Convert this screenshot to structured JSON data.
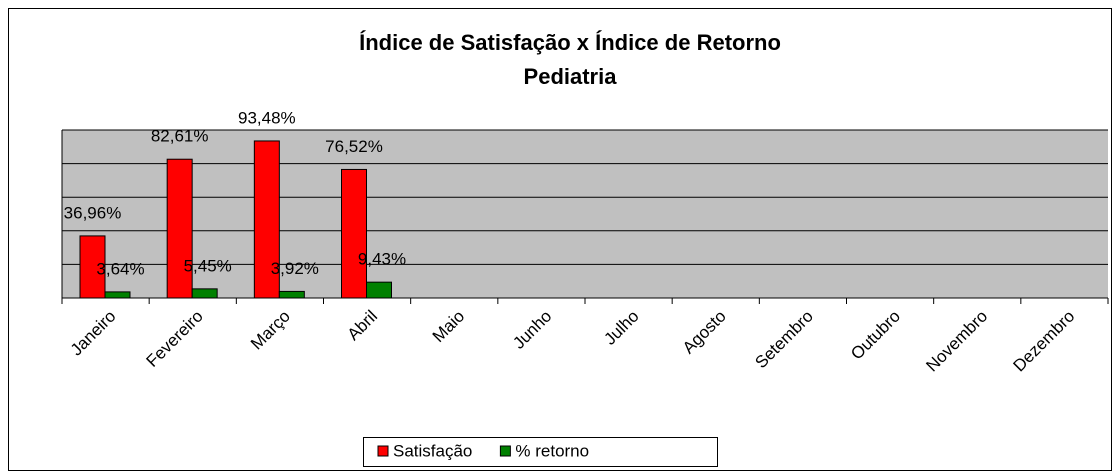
{
  "chart_data": {
    "type": "bar",
    "title": "Índice de Satisfação x Índice de Retorno",
    "subtitle": "Pediatria",
    "categories": [
      "Janeiro",
      "Fevereiro",
      "Março",
      "Abril",
      "Maio",
      "Junho",
      "Julho",
      "Agosto",
      "Setembro",
      "Outubro",
      "Novembro",
      "Dezembro"
    ],
    "series": [
      {
        "name": "Satisfação",
        "color": "#ff0000",
        "values": [
          36.96,
          82.61,
          93.48,
          76.52,
          null,
          null,
          null,
          null,
          null,
          null,
          null,
          null
        ],
        "value_labels": [
          "36,96%",
          "82,61%",
          "93,48%",
          "76,52%",
          null,
          null,
          null,
          null,
          null,
          null,
          null,
          null
        ]
      },
      {
        "name": "% retorno",
        "color": "#008000",
        "values": [
          3.64,
          5.45,
          3.92,
          9.43,
          null,
          null,
          null,
          null,
          null,
          null,
          null,
          null
        ],
        "value_labels": [
          "3,64%",
          "5,45%",
          "3,92%",
          "9,43%",
          null,
          null,
          null,
          null,
          null,
          null,
          null,
          null
        ]
      }
    ],
    "ylim": [
      0,
      100
    ],
    "yticks": [
      0,
      20,
      40,
      60,
      80,
      100
    ],
    "grid": true,
    "legend": "bottom"
  }
}
